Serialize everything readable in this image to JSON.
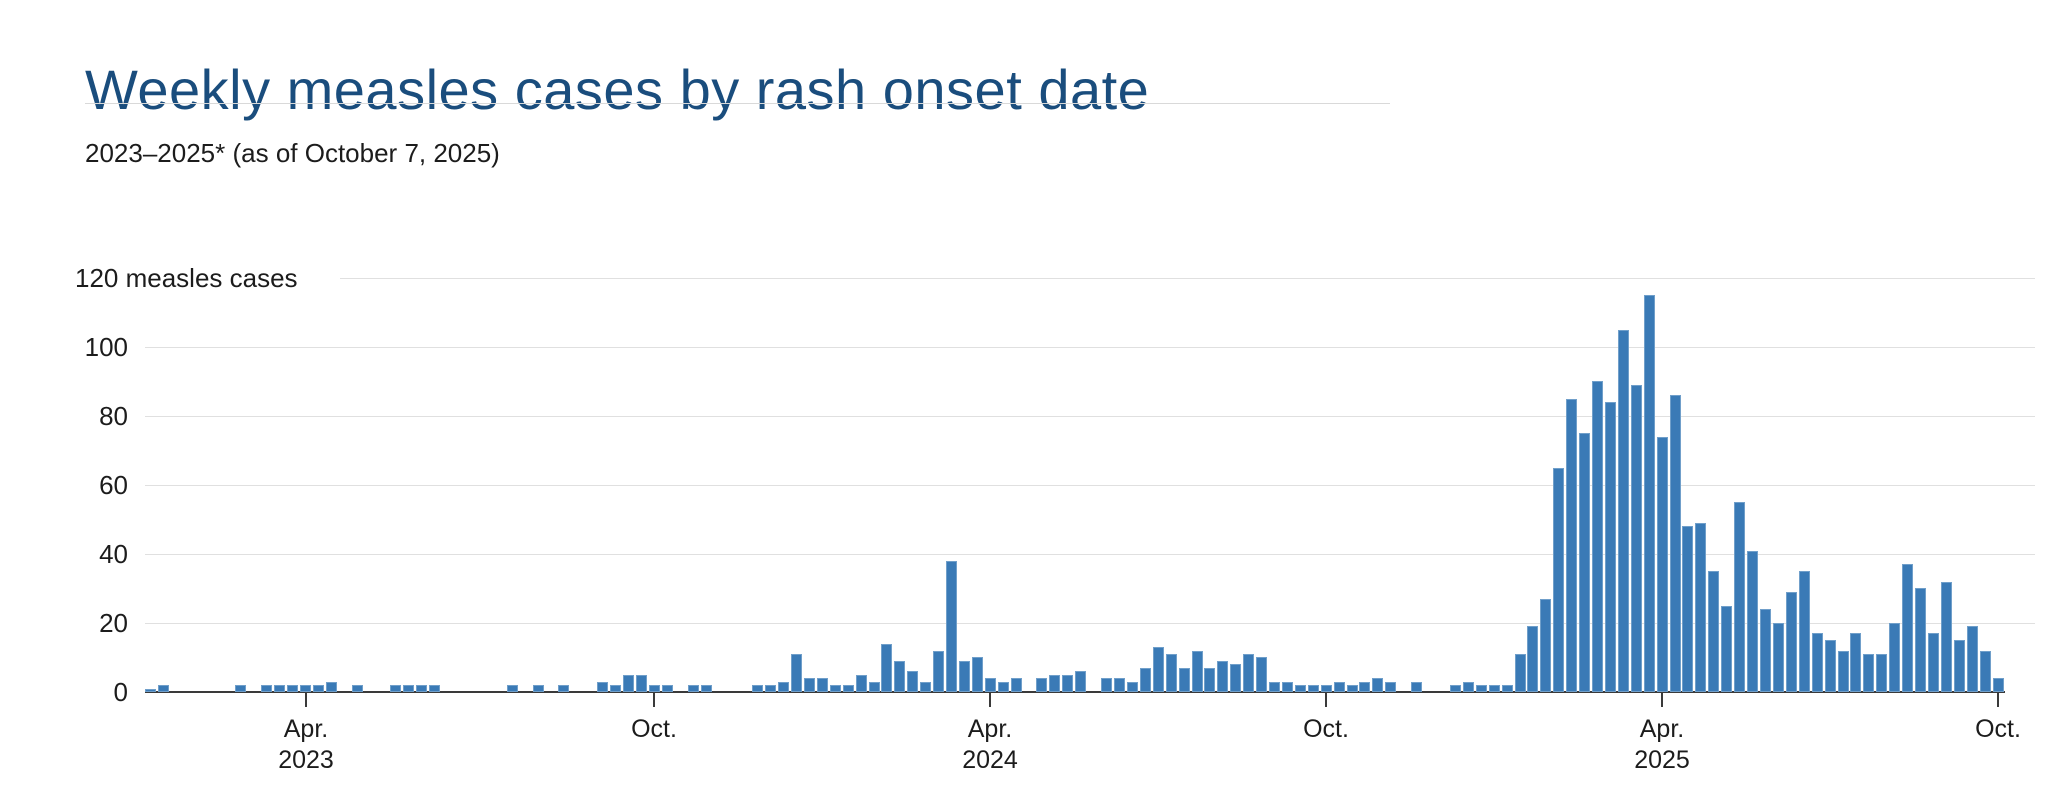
{
  "header": {
    "title": "Weekly measles cases by rash onset date",
    "subtitle": "2023–2025* (as of October 7, 2025)"
  },
  "chart_data": {
    "type": "bar",
    "title": "Weekly measles cases by rash onset date",
    "subtitle": "2023–2025* (as of October 7, 2025)",
    "y_top_label": "120 measles cases",
    "ylabel": "measles cases",
    "ylim": [
      0,
      120
    ],
    "y_ticks": [
      0,
      20,
      40,
      60,
      80,
      100
    ],
    "grid": true,
    "legend": "none",
    "bar_color": "#3a7ab6",
    "x_unit": "week",
    "x_range_note": "weekly bars from January 2023 through early October 2025",
    "values": [
      1,
      2,
      0,
      0,
      0,
      0,
      0,
      2,
      0,
      2,
      2,
      2,
      2,
      2,
      3,
      0,
      2,
      0,
      0,
      2,
      2,
      2,
      2,
      0,
      0,
      0,
      0,
      0,
      2,
      0,
      2,
      0,
      2,
      0,
      0,
      3,
      2,
      5,
      5,
      2,
      2,
      0,
      2,
      2,
      0,
      0,
      0,
      2,
      2,
      3,
      11,
      4,
      4,
      2,
      2,
      5,
      3,
      14,
      9,
      6,
      3,
      12,
      38,
      9,
      10,
      4,
      3,
      4,
      0,
      4,
      5,
      5,
      6,
      0,
      4,
      4,
      3,
      7,
      13,
      11,
      7,
      12,
      7,
      9,
      8,
      11,
      10,
      3,
      3,
      2,
      2,
      2,
      3,
      2,
      3,
      4,
      3,
      0,
      3,
      0,
      0,
      2,
      3,
      2,
      2,
      2,
      11,
      19,
      27,
      65,
      85,
      75,
      90,
      84,
      105,
      89,
      115,
      74,
      86,
      48,
      49,
      35,
      25,
      55,
      41,
      24,
      20,
      29,
      35,
      17,
      15,
      12,
      17,
      11,
      11,
      20,
      37,
      30,
      17,
      32,
      15,
      19,
      12,
      4
    ],
    "x_ticks": [
      {
        "week_index": 13,
        "lines": [
          "Apr.",
          "2023"
        ]
      },
      {
        "week_index": 40,
        "lines": [
          "Oct."
        ]
      },
      {
        "week_index": 66,
        "lines": [
          "Apr.",
          "2024"
        ]
      },
      {
        "week_index": 92,
        "lines": [
          "Oct."
        ]
      },
      {
        "week_index": 118,
        "lines": [
          "Apr.",
          "2025"
        ]
      },
      {
        "week_index": 144,
        "lines": [
          "Oct."
        ]
      }
    ]
  },
  "colors": {
    "title": "#1a4d7d",
    "bar": "#3a7ab6",
    "gridline": "#e0e0e0",
    "axis": "#3a3a3a",
    "text": "#1c1c1c"
  }
}
